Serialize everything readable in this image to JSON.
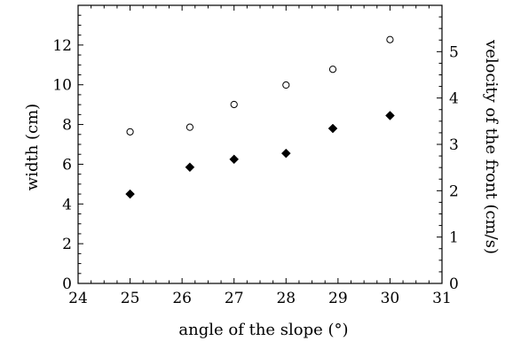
{
  "chart_data": {
    "type": "scatter",
    "xlabel": "angle of the slope (°)",
    "ylabel": "width (cm)",
    "y2label": "velocity of the front (cm/s)",
    "xlim": [
      24,
      31
    ],
    "ylim": [
      0,
      14
    ],
    "y2lim": [
      0,
      6
    ],
    "x_ticks": [
      24,
      25,
      26,
      27,
      28,
      29,
      30,
      31
    ],
    "y_ticks": [
      0,
      2,
      4,
      6,
      8,
      10,
      12
    ],
    "y2_ticks": [
      0,
      1,
      2,
      3,
      4,
      5
    ],
    "grid": false,
    "series": [
      {
        "axis": "left",
        "marker": "filled-diamond",
        "color": "#000000",
        "points": [
          {
            "x": 25.0,
            "y": 4.5
          },
          {
            "x": 26.15,
            "y": 5.85
          },
          {
            "x": 27.0,
            "y": 6.25
          },
          {
            "x": 28.0,
            "y": 6.55
          },
          {
            "x": 28.9,
            "y": 7.8
          },
          {
            "x": 30.0,
            "y": 8.45
          }
        ]
      },
      {
        "axis": "right",
        "marker": "open-circle",
        "color": "#000000",
        "points": [
          {
            "x": 25.0,
            "y": 3.27
          },
          {
            "x": 26.15,
            "y": 3.37
          },
          {
            "x": 27.0,
            "y": 3.86
          },
          {
            "x": 28.0,
            "y": 4.28
          },
          {
            "x": 28.9,
            "y": 4.62
          },
          {
            "x": 30.0,
            "y": 5.26
          }
        ]
      }
    ]
  }
}
